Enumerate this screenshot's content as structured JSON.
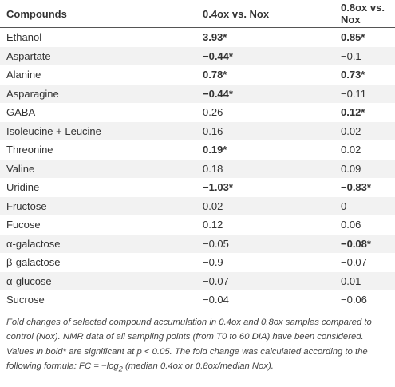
{
  "table": {
    "header": [
      "Compounds",
      "0.4ox vs. Nox",
      "0.8ox vs. Nox"
    ],
    "rows": [
      [
        {
          "text": "Ethanol"
        },
        {
          "text": "3.93*",
          "bold": true
        },
        {
          "text": "0.85*",
          "bold": true
        }
      ],
      [
        {
          "text": "Aspartate"
        },
        {
          "text": "−0.44*",
          "bold": true
        },
        {
          "text": "−0.1"
        }
      ],
      [
        {
          "text": "Alanine"
        },
        {
          "text": "0.78*",
          "bold": true
        },
        {
          "text": "0.73*",
          "bold": true
        }
      ],
      [
        {
          "text": "Asparagine"
        },
        {
          "text": "−0.44*",
          "bold": true
        },
        {
          "text": "−0.11"
        }
      ],
      [
        {
          "text": "GABA"
        },
        {
          "text": "0.26"
        },
        {
          "text": "0.12*",
          "bold": true
        }
      ],
      [
        {
          "text": "Isoleucine + Leucine"
        },
        {
          "text": "0.16"
        },
        {
          "text": "0.02"
        }
      ],
      [
        {
          "text": "Threonine"
        },
        {
          "text": "0.19*",
          "bold": true
        },
        {
          "text": "0.02"
        }
      ],
      [
        {
          "text": "Valine"
        },
        {
          "text": "0.18"
        },
        {
          "text": "0.09"
        }
      ],
      [
        {
          "text": "Uridine"
        },
        {
          "text": "−1.03*",
          "bold": true
        },
        {
          "text": "−0.83*",
          "bold": true
        }
      ],
      [
        {
          "text": "Fructose"
        },
        {
          "text": "0.02"
        },
        {
          "text": "0"
        }
      ],
      [
        {
          "text": "Fucose"
        },
        {
          "text": "0.12"
        },
        {
          "text": "0.06"
        }
      ],
      [
        {
          "text": "α-galactose"
        },
        {
          "text": "−0.05"
        },
        {
          "text": "−0.08*",
          "bold": true
        }
      ],
      [
        {
          "text": "β-galactose"
        },
        {
          "text": "−0.9"
        },
        {
          "text": "−0.07"
        }
      ],
      [
        {
          "text": "α-glucose"
        },
        {
          "text": "−0.07"
        },
        {
          "text": "0.01"
        }
      ],
      [
        {
          "text": "Sucrose"
        },
        {
          "text": "−0.04"
        },
        {
          "text": "−0.06"
        }
      ]
    ]
  },
  "footnote": [
    {
      "text": "Fold changes of selected compound accumulation in 0.4ox and 0.8ox samples compared to control (Nox). NMR data of all sampling points (from T0 to 60 DIA) have been considered. Values in bold* are significant at p < 0.05. The fold change was calculated according to the following formula: FC = −log"
    },
    {
      "text": "2",
      "sub": true
    },
    {
      "text": " (median 0.4ox or 0.8ox/median Nox)."
    }
  ]
}
